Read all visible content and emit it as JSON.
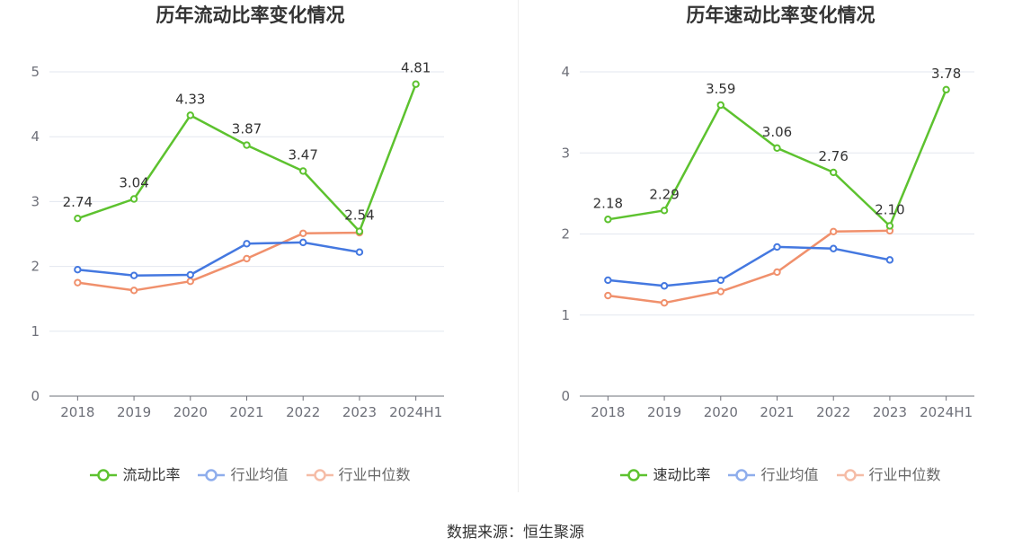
{
  "chart_data": [
    {
      "type": "line",
      "title": "历年流动比率变化情况",
      "categories": [
        "2018",
        "2019",
        "2020",
        "2021",
        "2022",
        "2023",
        "2024H1"
      ],
      "ylim": [
        0,
        5
      ],
      "yticks": [
        0,
        1,
        2,
        3,
        4,
        5
      ],
      "grid": true,
      "legend_position": "bottom",
      "series": [
        {
          "name": "流动比率",
          "color": "#5dc22f",
          "data_labels": true,
          "values": [
            2.74,
            3.04,
            4.33,
            3.87,
            3.47,
            2.54,
            4.81
          ]
        },
        {
          "name": "行业均值",
          "color": "#4478e0",
          "data_labels": false,
          "values": [
            1.95,
            1.86,
            1.87,
            2.35,
            2.37,
            2.22,
            null
          ]
        },
        {
          "name": "行业中位数",
          "color": "#f0906c",
          "data_labels": false,
          "values": [
            1.75,
            1.63,
            1.77,
            2.12,
            2.51,
            2.52,
            null
          ]
        }
      ]
    },
    {
      "type": "line",
      "title": "历年速动比率变化情况",
      "categories": [
        "2018",
        "2019",
        "2020",
        "2021",
        "2022",
        "2023",
        "2024H1"
      ],
      "ylim": [
        0,
        4
      ],
      "yticks": [
        0,
        1,
        2,
        3,
        4
      ],
      "grid": true,
      "legend_position": "bottom",
      "series": [
        {
          "name": "速动比率",
          "color": "#5dc22f",
          "data_labels": true,
          "values": [
            2.18,
            2.29,
            3.59,
            3.06,
            2.76,
            2.1,
            3.78
          ]
        },
        {
          "name": "行业均值",
          "color": "#4478e0",
          "data_labels": false,
          "values": [
            1.43,
            1.36,
            1.43,
            1.84,
            1.82,
            1.68,
            null
          ]
        },
        {
          "name": "行业中位数",
          "color": "#f0906c",
          "data_labels": false,
          "values": [
            1.24,
            1.15,
            1.29,
            1.53,
            2.03,
            2.04,
            null
          ]
        }
      ]
    }
  ],
  "source": "数据来源：恒生聚源"
}
